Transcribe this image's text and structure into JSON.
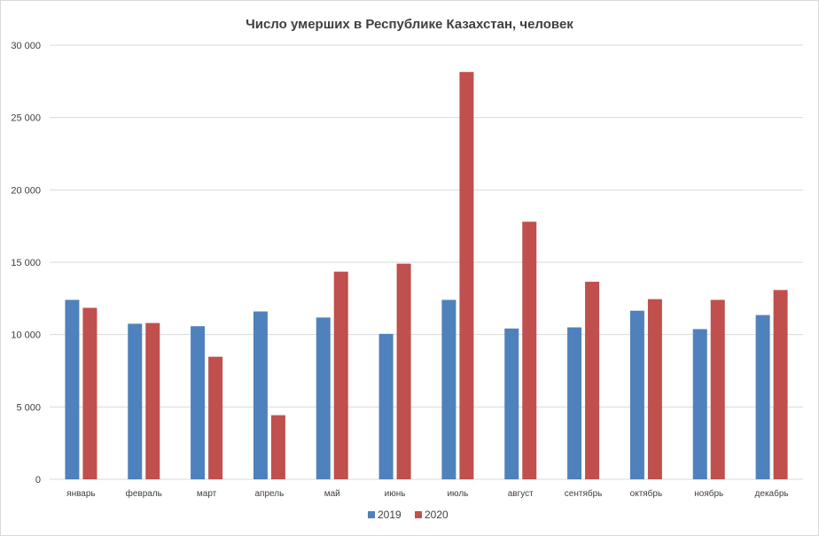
{
  "chart_data": {
    "type": "bar",
    "title": "Число умерших в Республике Казахстан, человек",
    "xlabel": "",
    "ylabel": "",
    "categories": [
      "январь",
      "февраль",
      "март",
      "апрель",
      "май",
      "июнь",
      "июль",
      "август",
      "сентябрь",
      "октябрь",
      "ноябрь",
      "декабрь"
    ],
    "series": [
      {
        "name": "2019",
        "color": "#4f81bd",
        "values": [
          12400,
          10750,
          10580,
          11600,
          11180,
          10050,
          12400,
          10420,
          10500,
          11650,
          10380,
          11350
        ]
      },
      {
        "name": "2020",
        "color": "#c0504d",
        "values": [
          11850,
          10800,
          8470,
          4430,
          14350,
          14900,
          28150,
          17800,
          13650,
          12450,
          12400,
          13080
        ]
      }
    ],
    "ylim": [
      0,
      30000
    ],
    "yticks": [
      0,
      5000,
      10000,
      15000,
      20000,
      25000,
      30000
    ],
    "ytick_labels": [
      "0",
      "5 000",
      "10 000",
      "15 000",
      "20 000",
      "25 000",
      "30 000"
    ],
    "grid": true,
    "legend_position": "bottom"
  }
}
